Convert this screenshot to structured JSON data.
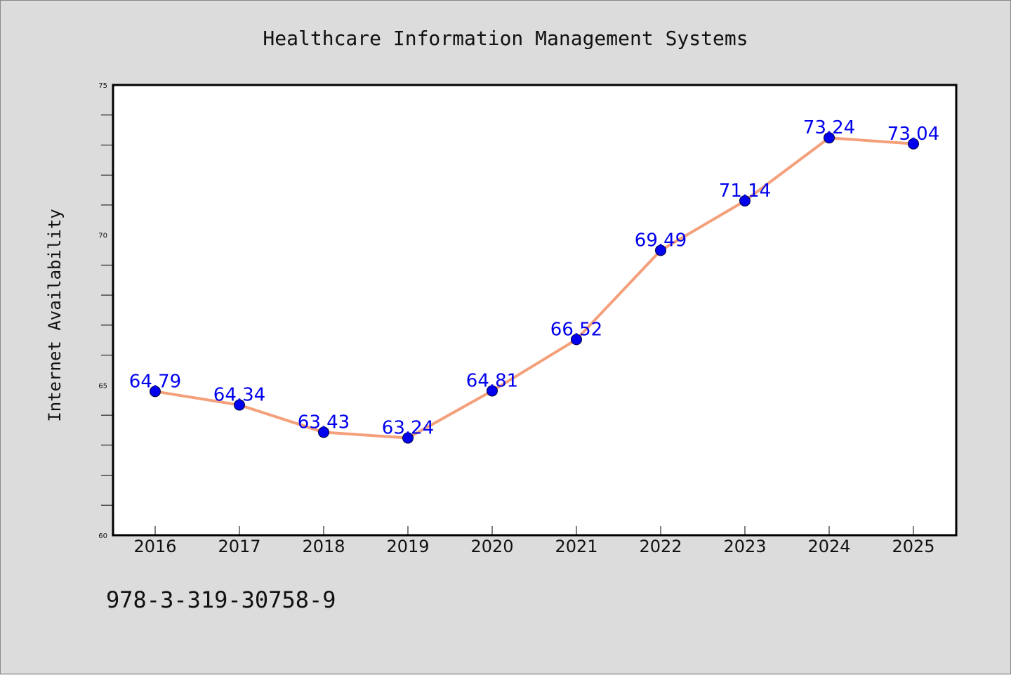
{
  "chart_data": {
    "type": "line",
    "title": "Healthcare Information Management Systems",
    "xlabel": "",
    "ylabel": "Internet Availability",
    "categories": [
      "2016",
      "2017",
      "2018",
      "2019",
      "2020",
      "2021",
      "2022",
      "2023",
      "2024",
      "2025"
    ],
    "series": [
      {
        "values": [
          64.79,
          64.34,
          63.43,
          63.24,
          64.81,
          66.52,
          69.49,
          71.14,
          73.24,
          73.04
        ],
        "data_labels": [
          "64.79",
          "64.34",
          "63.43",
          "63.24",
          "64.81",
          "66.52",
          "69.49",
          "71.14",
          "73.24",
          "73.04"
        ]
      }
    ],
    "ylim": [
      60,
      75
    ],
    "yticks": [
      "60",
      "65",
      "70",
      "75"
    ],
    "grid": false,
    "legend": "none",
    "colors": {
      "line": "#f4a07a",
      "marker": "#0000ee",
      "marker_edge": "#00003a",
      "label": "#0000ee",
      "background": "#dcdcdc",
      "plot_background": "#ffffff"
    }
  },
  "footnote": "978-3-319-30758-9"
}
